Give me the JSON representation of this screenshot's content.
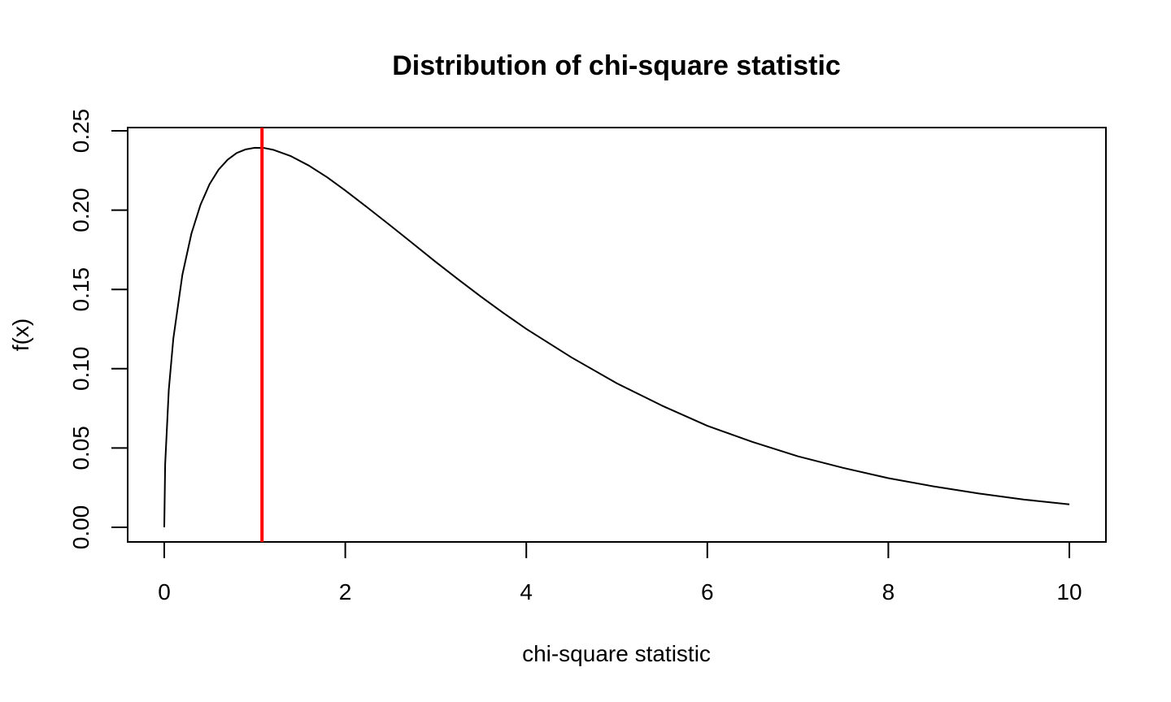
{
  "chart_data": {
    "type": "line",
    "title": "Distribution of chi-square statistic",
    "xlabel": "chi-square statistic",
    "ylabel": "f(x)",
    "xlim": [
      0,
      10
    ],
    "ylim": [
      0,
      0.25
    ],
    "x_ticks": [
      {
        "value": 0,
        "label": "0"
      },
      {
        "value": 2,
        "label": "2"
      },
      {
        "value": 4,
        "label": "4"
      },
      {
        "value": 6,
        "label": "6"
      },
      {
        "value": 8,
        "label": "8"
      },
      {
        "value": 10,
        "label": "10"
      }
    ],
    "y_ticks": [
      {
        "value": 0,
        "label": "0.00"
      },
      {
        "value": 0.05,
        "label": "0.05"
      },
      {
        "value": 0.1,
        "label": "0.10"
      },
      {
        "value": 0.15,
        "label": "0.15"
      },
      {
        "value": 0.2,
        "label": "0.20"
      },
      {
        "value": 0.25,
        "label": "0.25"
      }
    ],
    "grid": false,
    "series": [
      {
        "color": "#000000",
        "x": [
          0,
          0.01,
          0.05,
          0.1,
          0.2,
          0.3,
          0.4,
          0.5,
          0.6,
          0.7,
          0.8,
          0.9,
          1.0,
          1.1,
          1.2,
          1.4,
          1.6,
          1.8,
          2.0,
          2.25,
          2.5,
          2.75,
          3.0,
          3.25,
          3.5,
          3.75,
          4.0,
          4.5,
          5.0,
          5.5,
          6.0,
          6.5,
          7.0,
          7.5,
          8.0,
          8.5,
          9.0,
          9.5,
          10.0
        ],
        "y": [
          0,
          0.0398,
          0.0867,
          0.1189,
          0.1592,
          0.1852,
          0.2033,
          0.2163,
          0.2255,
          0.2318,
          0.236,
          0.2383,
          0.2393,
          0.2392,
          0.2381,
          0.234,
          0.228,
          0.2207,
          0.2124,
          0.2014,
          0.1902,
          0.1788,
          0.1673,
          0.1562,
          0.1454,
          0.135,
          0.1251,
          0.1071,
          0.0908,
          0.0767,
          0.064,
          0.0538,
          0.0448,
          0.0375,
          0.031,
          0.0258,
          0.0213,
          0.0175,
          0.0145
        ]
      }
    ],
    "vlines": [
      {
        "x": 1.08,
        "color": "#ff0000"
      }
    ]
  }
}
